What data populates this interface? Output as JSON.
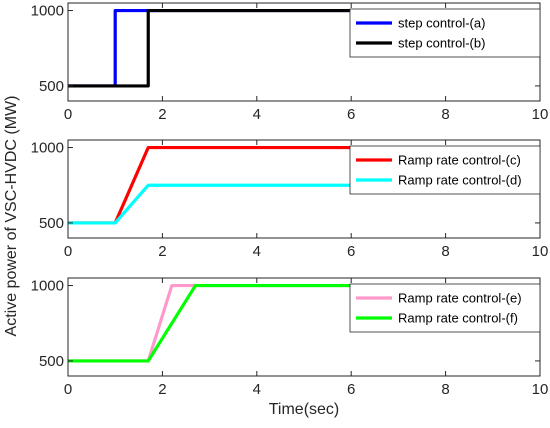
{
  "chart_data": [
    {
      "type": "line",
      "xlim": [
        0,
        10
      ],
      "ylim": [
        400,
        1050
      ],
      "xticks": [
        0,
        2,
        4,
        6,
        8,
        10
      ],
      "yticks": [
        500,
        1000
      ],
      "legend_position": "top-right",
      "series": [
        {
          "name": "step control-(a)",
          "color": "#0000ff",
          "points": [
            [
              0,
              500
            ],
            [
              1.0,
              500
            ],
            [
              1.0,
              1000
            ],
            [
              10,
              1000
            ]
          ]
        },
        {
          "name": "step control-(b)",
          "color": "#000000",
          "points": [
            [
              0,
              500
            ],
            [
              1.7,
              500
            ],
            [
              1.7,
              1000
            ],
            [
              10,
              1000
            ]
          ]
        }
      ]
    },
    {
      "type": "line",
      "xlim": [
        0,
        10
      ],
      "ylim": [
        400,
        1050
      ],
      "xticks": [
        0,
        2,
        4,
        6,
        8,
        10
      ],
      "yticks": [
        500,
        1000
      ],
      "legend_position": "top-right",
      "series": [
        {
          "name": "Ramp rate control-(c)",
          "color": "#ff0000",
          "points": [
            [
              0,
              500
            ],
            [
              1.0,
              500
            ],
            [
              1.7,
              1000
            ],
            [
              10,
              1000
            ]
          ]
        },
        {
          "name": "Ramp rate control-(d)",
          "color": "#00ffff",
          "points": [
            [
              0,
              500
            ],
            [
              1.0,
              500
            ],
            [
              1.7,
              750
            ],
            [
              10,
              750
            ]
          ]
        }
      ]
    },
    {
      "type": "line",
      "xlim": [
        0,
        10
      ],
      "ylim": [
        400,
        1050
      ],
      "xticks": [
        0,
        2,
        4,
        6,
        8,
        10
      ],
      "yticks": [
        500,
        1000
      ],
      "xlabel": "Time(sec)",
      "legend_position": "top-right",
      "series": [
        {
          "name": "Ramp rate control-(e)",
          "color": "#ff99cc",
          "points": [
            [
              0,
              500
            ],
            [
              1.7,
              500
            ],
            [
              2.2,
              1000
            ],
            [
              10,
              1000
            ]
          ]
        },
        {
          "name": "Ramp rate control-(f)",
          "color": "#00ff00",
          "points": [
            [
              0,
              500
            ],
            [
              1.7,
              500
            ],
            [
              2.7,
              1000
            ],
            [
              10,
              1000
            ]
          ]
        }
      ]
    }
  ],
  "ylabel": "Active power of VSC-HVDC (MW)"
}
